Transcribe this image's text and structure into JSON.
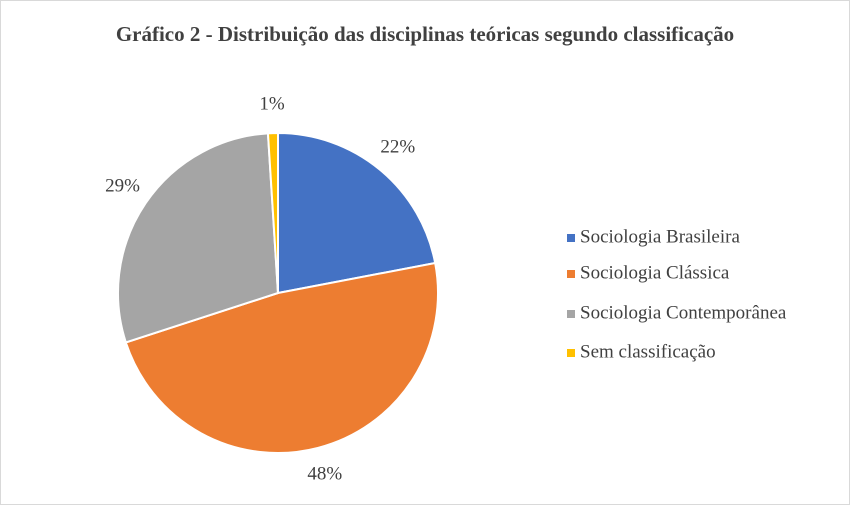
{
  "chart_data": {
    "type": "pie",
    "title": "Gráfico 2 - Distribuição das disciplinas teóricas segundo classificação",
    "categories": [
      "Sociologia Brasileira",
      "Sociologia Clássica",
      "Sociologia Contemporânea",
      "Sem classificação"
    ],
    "values": [
      22,
      48,
      29,
      1
    ],
    "value_labels": [
      "22%",
      "48%",
      "29%",
      "1%"
    ],
    "colors": [
      "#4472c4",
      "#ed7d31",
      "#a5a5a5",
      "#ffc000"
    ],
    "legend": "right"
  }
}
